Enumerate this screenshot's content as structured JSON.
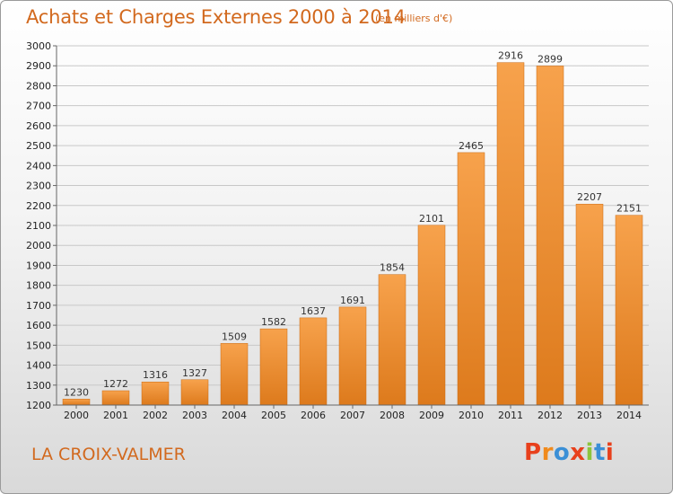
{
  "header": {
    "title": "Achats et Charges Externes 2000 à 2014",
    "subtitle": "(en milliers d'€)"
  },
  "footer": {
    "town": "LA CROIX-VALMER",
    "logo": "Proxiti"
  },
  "colors": {
    "accent": "#d2691e",
    "bar_top": "#f7a24c",
    "bar_bottom": "#dd7a1c",
    "logo_letters": [
      "#e8401c",
      "#f08a1c",
      "#3a8fd6",
      "#e8401c",
      "#8cc43c",
      "#3a8fd6",
      "#e8401c"
    ]
  },
  "chart_data": {
    "type": "bar",
    "title": "Achats et Charges Externes 2000 à 2014",
    "subtitle": "(en milliers d'€)",
    "categories": [
      "2000",
      "2001",
      "2002",
      "2003",
      "2004",
      "2005",
      "2006",
      "2007",
      "2008",
      "2009",
      "2010",
      "2011",
      "2012",
      "2013",
      "2014"
    ],
    "values": [
      1230,
      1272,
      1316,
      1327,
      1509,
      1582,
      1637,
      1691,
      1854,
      2101,
      2465,
      2916,
      2899,
      2207,
      2151
    ],
    "ylim": [
      1200,
      3000
    ],
    "yticks": [
      1200,
      1300,
      1400,
      1500,
      1600,
      1700,
      1800,
      1900,
      2000,
      2100,
      2200,
      2300,
      2400,
      2500,
      2600,
      2700,
      2800,
      2900,
      3000
    ],
    "grid": true,
    "data_labels": true
  }
}
